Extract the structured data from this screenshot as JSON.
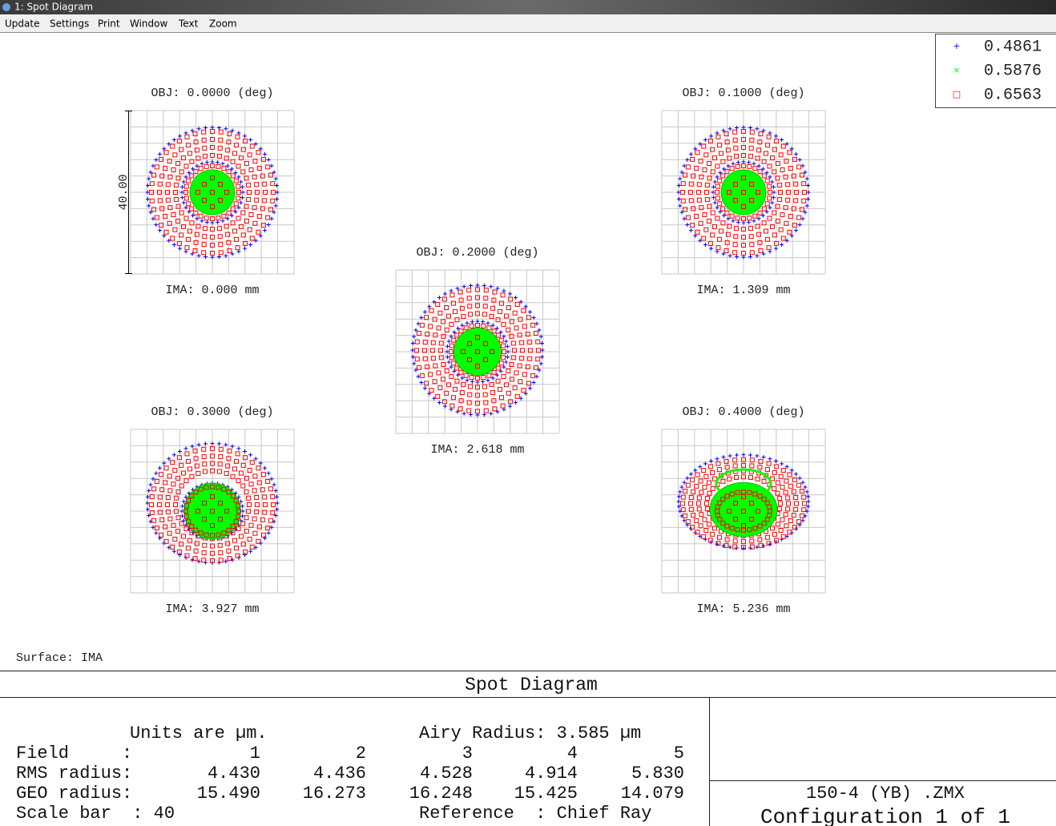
{
  "window": {
    "title": "1: Spot Diagram",
    "menu": [
      "Update",
      "Settings",
      "Print",
      "Window",
      "Text",
      "Zoom"
    ]
  },
  "legend": [
    {
      "marker": "+",
      "label": "0.4861",
      "color": "#0000ff"
    },
    {
      "marker": "×",
      "label": "0.5876",
      "color": "#00ff00"
    },
    {
      "marker": "□",
      "label": "0.6563",
      "color": "#ff0000"
    }
  ],
  "fields": [
    {
      "obj": "OBJ: 0.0000 (deg)",
      "ima": "IMA: 0.000 mm"
    },
    {
      "obj": "OBJ: 0.1000 (deg)",
      "ima": "IMA: 1.309 mm"
    },
    {
      "obj": "OBJ: 0.2000 (deg)",
      "ima": "IMA: 2.618 mm"
    },
    {
      "obj": "OBJ: 0.3000 (deg)",
      "ima": "IMA: 3.927 mm"
    },
    {
      "obj": "OBJ: 0.4000 (deg)",
      "ima": "IMA: 5.236 mm"
    }
  ],
  "scale_label": "40.00",
  "surface": "Surface: IMA",
  "footer": {
    "title": "Spot Diagram",
    "units": "Units are µm.",
    "airy": "Airy Radius: 3.585 µm",
    "table": {
      "rows": [
        [
          "Field",
          ":",
          "1",
          "2",
          "3",
          "4",
          "5"
        ],
        [
          "RMS radius",
          ":",
          "4.430",
          "4.436",
          "4.528",
          "4.914",
          "5.830"
        ],
        [
          "GEO radius",
          ":",
          "15.490",
          "16.273",
          "16.248",
          "15.425",
          "14.079"
        ]
      ]
    },
    "scale_bar": "Scale bar  : 40",
    "reference": "Reference  : Chief Ray",
    "file": "150-4 (YB) .ZMX",
    "config": "Configuration 1 of 1"
  }
}
